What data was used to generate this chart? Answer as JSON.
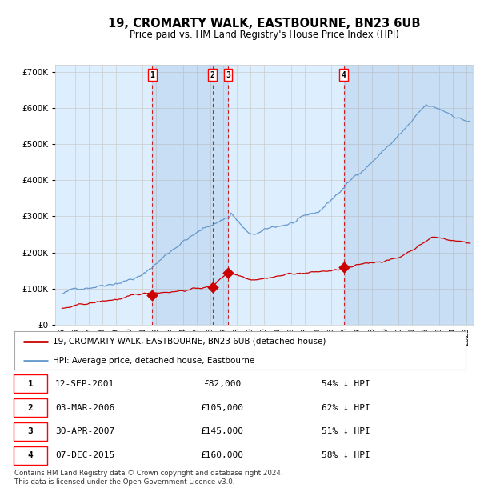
{
  "title": "19, CROMARTY WALK, EASTBOURNE, BN23 6UB",
  "subtitle": "Price paid vs. HM Land Registry's House Price Index (HPI)",
  "footer": "Contains HM Land Registry data © Crown copyright and database right 2024.\nThis data is licensed under the Open Government Licence v3.0.",
  "legend_line1": "19, CROMARTY WALK, EASTBOURNE, BN23 6UB (detached house)",
  "legend_line2": "HPI: Average price, detached house, Eastbourne",
  "transactions": [
    {
      "num": 1,
      "date": "12-SEP-2001",
      "price": 82000,
      "pct": "54% ↓ HPI",
      "year_x": 2001.7
    },
    {
      "num": 2,
      "date": "03-MAR-2006",
      "price": 105000,
      "pct": "62% ↓ HPI",
      "year_x": 2006.17
    },
    {
      "num": 3,
      "date": "30-APR-2007",
      "price": 145000,
      "pct": "51% ↓ HPI",
      "year_x": 2007.33
    },
    {
      "num": 4,
      "date": "07-DEC-2015",
      "price": 160000,
      "pct": "58% ↓ HPI",
      "year_x": 2015.92
    }
  ],
  "hpi_color": "#6699cc",
  "price_color": "#cc0000",
  "dashed_color": "#cc0000",
  "bg_color": "#ddeeff",
  "plot_bg": "#ffffff",
  "grid_color": "#cccccc",
  "ylim": [
    0,
    720000
  ],
  "yticks": [
    0,
    100000,
    200000,
    300000,
    400000,
    500000,
    600000,
    700000
  ],
  "xlim_start": 1994.5,
  "xlim_end": 2025.5,
  "xticks": [
    1995,
    1996,
    1997,
    1998,
    1999,
    2000,
    2001,
    2002,
    2003,
    2004,
    2005,
    2006,
    2007,
    2008,
    2009,
    2010,
    2011,
    2012,
    2013,
    2014,
    2015,
    2016,
    2017,
    2018,
    2019,
    2020,
    2021,
    2022,
    2023,
    2024,
    2025
  ]
}
